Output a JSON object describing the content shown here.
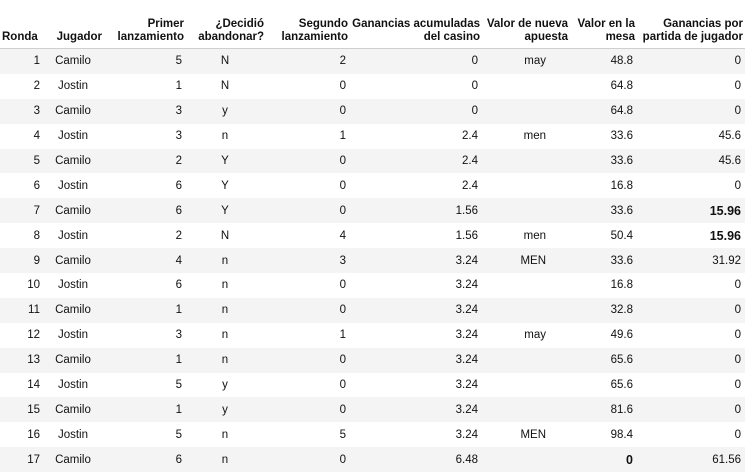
{
  "headers": {
    "ronda": "Ronda",
    "jugador": "Jugador",
    "primer": "Primer lanzamiento",
    "decidio": "¿Decidió abandonar?",
    "segundo": "Segundo lanzamiento",
    "ganancias_casino": "Ganancias acumuladas del casino",
    "valor_nueva": "Valor de nueva apuesta",
    "valor_mesa": "Valor en la mesa",
    "ganancias_jugador": "Ganancias por partida de jugador"
  },
  "rows": [
    {
      "ronda": "1",
      "jugador": "Camilo",
      "primer": "5",
      "abandono": "N",
      "segundo": "2",
      "casino": "0",
      "nueva": "may",
      "mesa": "48.8",
      "jugador_gan": "0"
    },
    {
      "ronda": "2",
      "jugador": "Jostin",
      "primer": "1",
      "abandono": "N",
      "segundo": "0",
      "casino": "0",
      "nueva": "",
      "mesa": "64.8",
      "jugador_gan": "0"
    },
    {
      "ronda": "3",
      "jugador": "Camilo",
      "primer": "3",
      "abandono": "y",
      "segundo": "0",
      "casino": "0",
      "nueva": "",
      "mesa": "64.8",
      "jugador_gan": "0"
    },
    {
      "ronda": "4",
      "jugador": "Jostin",
      "primer": "3",
      "abandono": "n",
      "segundo": "1",
      "casino": "2.4",
      "nueva": "men",
      "mesa": "33.6",
      "jugador_gan": "45.6"
    },
    {
      "ronda": "5",
      "jugador": "Camilo",
      "primer": "2",
      "abandono": "Y",
      "segundo": "0",
      "casino": "2.4",
      "nueva": "",
      "mesa": "33.6",
      "jugador_gan": "45.6"
    },
    {
      "ronda": "6",
      "jugador": "Jostin",
      "primer": "6",
      "abandono": "Y",
      "segundo": "0",
      "casino": "2.4",
      "nueva": "",
      "mesa": "16.8",
      "jugador_gan": "0"
    },
    {
      "ronda": "7",
      "jugador": "Camilo",
      "primer": "6",
      "abandono": "Y",
      "segundo": "0",
      "casino": "1.56",
      "nueva": "",
      "mesa": "33.6",
      "jugador_gan": "15.96",
      "bold": true
    },
    {
      "ronda": "8",
      "jugador": "Jostin",
      "primer": "2",
      "abandono": "N",
      "segundo": "4",
      "casino": "1.56",
      "nueva": "men",
      "mesa": "50.4",
      "jugador_gan": "15.96",
      "bold": true
    },
    {
      "ronda": "9",
      "jugador": "Camilo",
      "primer": "4",
      "abandono": "n",
      "segundo": "3",
      "casino": "3.24",
      "nueva": "MEN",
      "mesa": "33.6",
      "jugador_gan": "31.92"
    },
    {
      "ronda": "10",
      "jugador": "Jostin",
      "primer": "6",
      "abandono": "n",
      "segundo": "0",
      "casino": "3.24",
      "nueva": "",
      "mesa": "16.8",
      "jugador_gan": "0"
    },
    {
      "ronda": "11",
      "jugador": "Camilo",
      "primer": "1",
      "abandono": "n",
      "segundo": "0",
      "casino": "3.24",
      "nueva": "",
      "mesa": "32.8",
      "jugador_gan": "0"
    },
    {
      "ronda": "12",
      "jugador": "Jostin",
      "primer": "3",
      "abandono": "n",
      "segundo": "1",
      "casino": "3.24",
      "nueva": "may",
      "mesa": "49.6",
      "jugador_gan": "0"
    },
    {
      "ronda": "13",
      "jugador": "Camilo",
      "primer": "1",
      "abandono": "n",
      "segundo": "0",
      "casino": "3.24",
      "nueva": "",
      "mesa": "65.6",
      "jugador_gan": "0"
    },
    {
      "ronda": "14",
      "jugador": "Jostin",
      "primer": "5",
      "abandono": "y",
      "segundo": "0",
      "casino": "3.24",
      "nueva": "",
      "mesa": "65.6",
      "jugador_gan": "0"
    },
    {
      "ronda": "15",
      "jugador": "Camilo",
      "primer": "1",
      "abandono": "y",
      "segundo": "0",
      "casino": "3.24",
      "nueva": "",
      "mesa": "81.6",
      "jugador_gan": "0"
    },
    {
      "ronda": "16",
      "jugador": "Jostin",
      "primer": "5",
      "abandono": "n",
      "segundo": "5",
      "casino": "3.24",
      "nueva": "MEN",
      "mesa": "98.4",
      "jugador_gan": "0"
    },
    {
      "ronda": "17",
      "jugador": "Camilo",
      "primer": "6",
      "abandono": "n",
      "segundo": "0",
      "casino": "6.48",
      "nueva": "",
      "mesa": "0",
      "jugador_gan": "61.56",
      "mesa_bold": true
    }
  ]
}
